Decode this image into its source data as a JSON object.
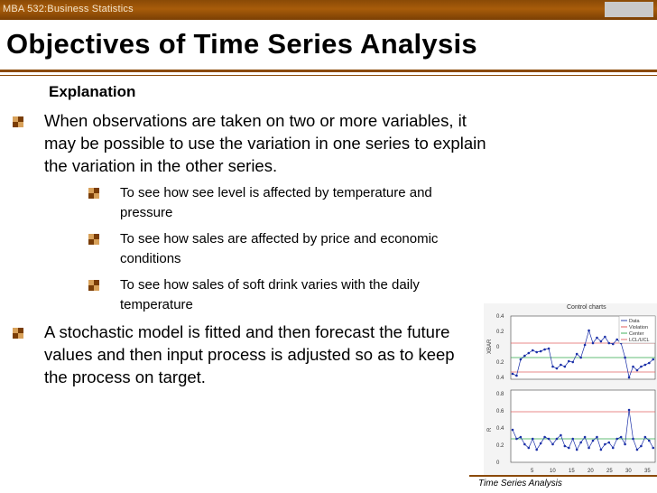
{
  "header": {
    "course": "MBA 532:Business Statistics",
    "slide_no": ""
  },
  "title": "Objectives of Time Series Analysis",
  "subhead": "Explanation",
  "bullets": [
    "When observations are taken on two or more variables, it may be possible to use the variation in one series to explain the variation in the other series.",
    "A stochastic model is fitted and then forecast the future values and then input process is adjusted so as to keep the process on target."
  ],
  "sub_bullets": [
    "To see how see level is affected by temperature and pressure",
    "To see how sales are affected by price and economic conditions",
    "To see how sales of soft drink varies with the daily temperature"
  ],
  "footer": "Time Series Analysis",
  "figure": {
    "title": "Control charts",
    "legend": [
      "Data",
      "Violation",
      "Center",
      "LCL/UCL"
    ],
    "xbar_label": "XBAR",
    "r_label": "R",
    "xbar_ticks": [
      "0.4",
      "0.2",
      "0",
      "0.2",
      "0.4"
    ],
    "r_ticks": [
      "0.8",
      "0.6",
      "0.4",
      "0.2",
      "0"
    ],
    "x_ticks": [
      "5",
      "10",
      "15",
      "20",
      "25",
      "30",
      "35"
    ],
    "colors": {
      "data": "#1a2fa8",
      "violation": "#e04a4a",
      "center": "#2fa84a",
      "limits": "#e06060"
    }
  }
}
